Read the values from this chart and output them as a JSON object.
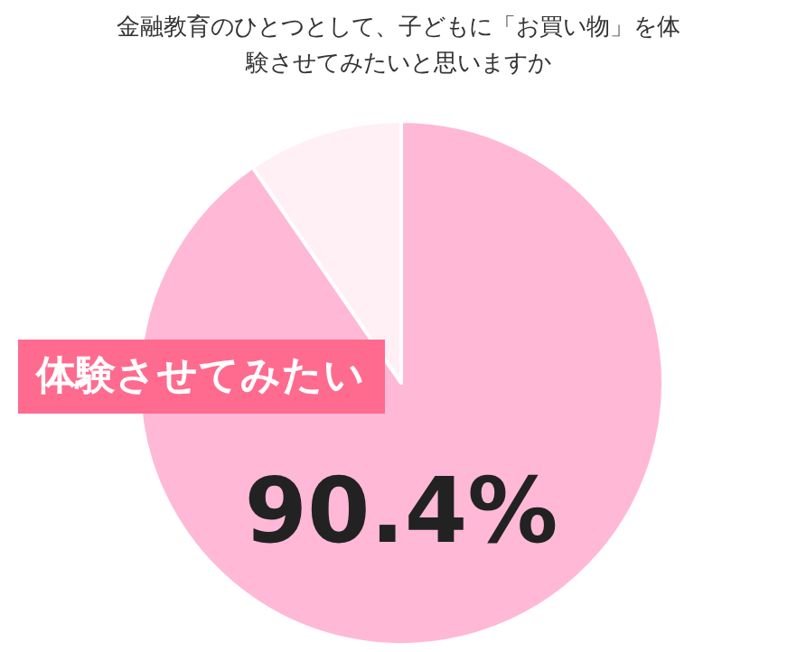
{
  "chart_data": {
    "type": "pie",
    "title": "金融教育のひとつとして、子どもに「お買い物」を体験させてみたいと思いますか",
    "categories": [
      "体験させてみたい",
      null
    ],
    "values": [
      90.4,
      9.6
    ],
    "colors": [
      "#ffb8d6",
      "#fff0f6"
    ],
    "value_labels": [
      "90.4%",
      null
    ]
  }
}
